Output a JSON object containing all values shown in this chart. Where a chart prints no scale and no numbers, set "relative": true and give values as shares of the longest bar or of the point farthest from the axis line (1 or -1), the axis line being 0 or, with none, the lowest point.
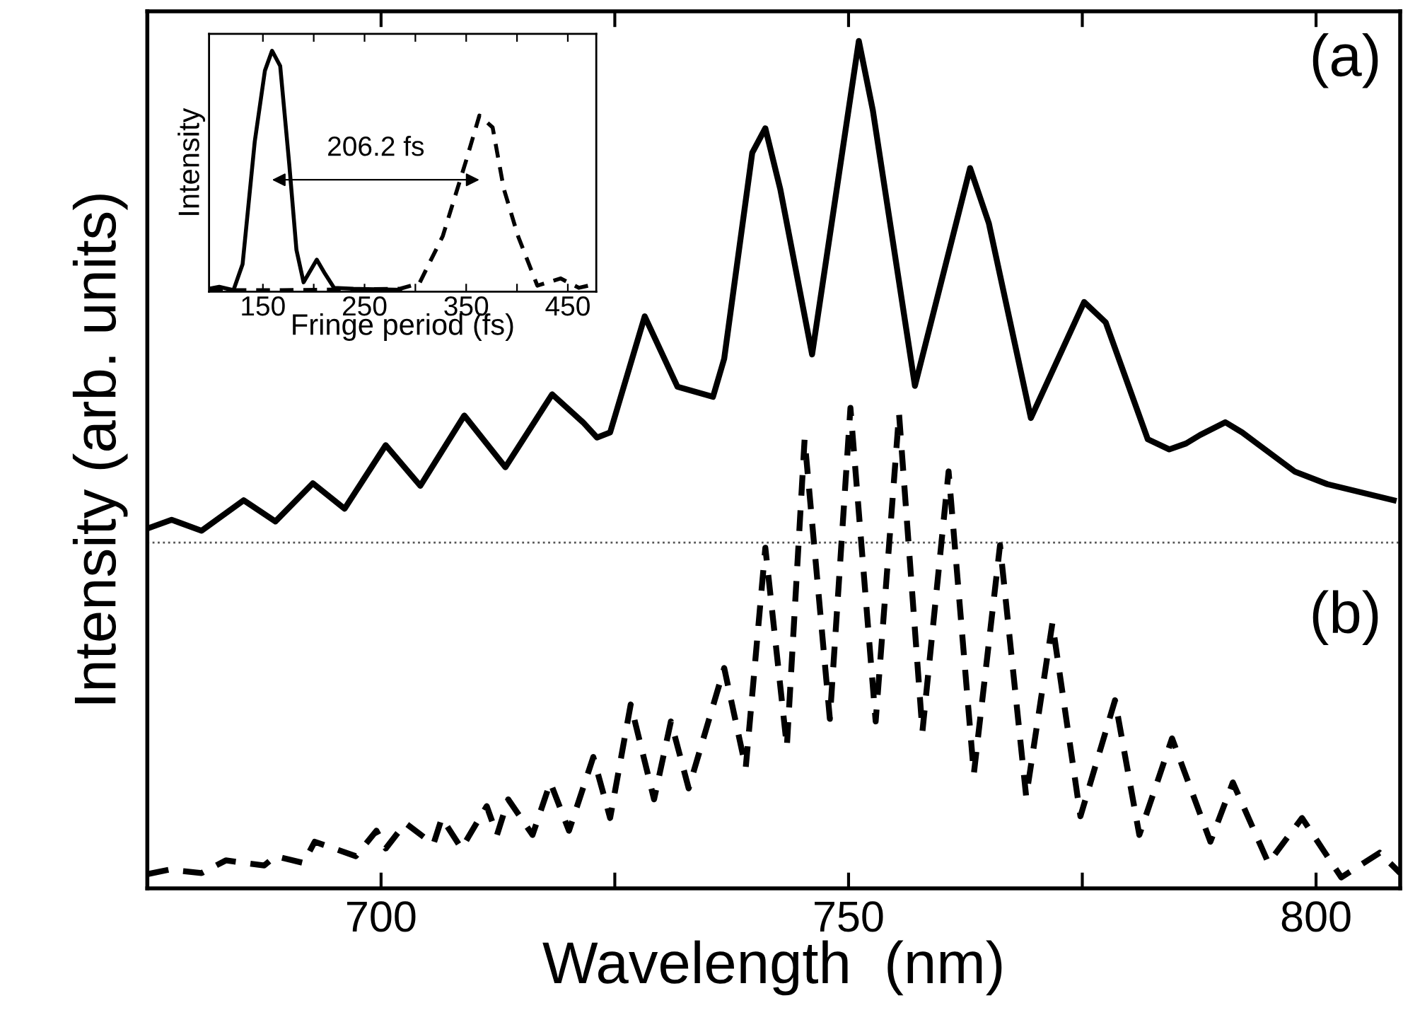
{
  "chart_data": [
    {
      "type": "line",
      "relative": true,
      "xlabel": "Wavelength  (nm)",
      "ylabel": "Intensity (arb. units)",
      "xlim": [
        675,
        809
      ],
      "xticks": [
        700,
        {
          "value": 725,
          "label": null
        },
        750,
        {
          "value": 775,
          "label": null
        },
        800
      ],
      "marker": "none",
      "tick_labels": "x",
      "series": [
        {
          "color": "#000000",
          "line_style": "solid",
          "x": [
            675.1,
            677.6,
            680.8,
            685.3,
            688.7,
            692.7,
            696.1,
            700.5,
            704.2,
            708.9,
            713.3,
            718.3,
            721.6,
            723.1,
            724.5,
            728.2,
            731.7,
            735.5,
            736.7,
            739.7,
            741.1,
            742.7,
            746.1,
            751.1,
            752.6,
            757.1,
            763.0,
            765.0,
            769.5,
            775.2,
            777.5,
            782.0,
            784.3,
            786.1,
            787.6,
            790.3,
            792.1,
            797.7,
            801.2,
            808.3
          ],
          "values": [
            0.425,
            0.435,
            0.422,
            0.458,
            0.433,
            0.478,
            0.448,
            0.523,
            0.475,
            0.558,
            0.497,
            0.583,
            0.55,
            0.532,
            0.538,
            0.675,
            0.592,
            0.58,
            0.625,
            0.868,
            0.897,
            0.825,
            0.63,
            1.0,
            0.918,
            0.593,
            0.85,
            0.785,
            0.555,
            0.692,
            0.668,
            0.53,
            0.518,
            0.525,
            0.535,
            0.55,
            0.538,
            0.492,
            0.477,
            0.458
          ]
        },
        {
          "color": "#000000",
          "line_style": "dashed",
          "x": [
            675.1,
            677.3,
            680.8,
            683.4,
            687.5,
            688.7,
            691.7,
            692.9,
            697.3,
            699.5,
            700.5,
            702.6,
            705.6,
            706.5,
            708.6,
            711.3,
            712.4,
            713.6,
            716.2,
            718.1,
            720.1,
            722.7,
            724.5,
            726.7,
            729.2,
            731.0,
            732.9,
            736.7,
            739.0,
            741.1,
            743.4,
            745.3,
            748.0,
            750.2,
            752.9,
            755.4,
            757.9,
            760.7,
            763.4,
            766.2,
            769.0,
            771.8,
            774.8,
            778.5,
            781.1,
            784.6,
            788.7,
            791.1,
            794.9,
            798.5,
            802.7,
            806.8,
            809.0
          ],
          "values": [
            0.017,
            0.022,
            0.018,
            0.033,
            0.027,
            0.038,
            0.03,
            0.055,
            0.038,
            0.068,
            0.047,
            0.077,
            0.052,
            0.083,
            0.047,
            0.097,
            0.063,
            0.105,
            0.063,
            0.125,
            0.068,
            0.155,
            0.083,
            0.217,
            0.105,
            0.197,
            0.118,
            0.26,
            0.142,
            0.402,
            0.167,
            0.53,
            0.2,
            0.567,
            0.197,
            0.56,
            0.185,
            0.492,
            0.135,
            0.405,
            0.108,
            0.313,
            0.085,
            0.222,
            0.063,
            0.177,
            0.055,
            0.125,
            0.03,
            0.083,
            0.013,
            0.042,
            0.018
          ]
        }
      ],
      "ref_lines": [
        {
          "axis": "y",
          "value": 0.408,
          "color": "#555555",
          "line_style": "dotted"
        }
      ],
      "annotations": [
        "(a)",
        "(b)"
      ]
    },
    {
      "type": "line",
      "relative": true,
      "xlabel": "Fringe period (fs)",
      "ylabel": "Intensity",
      "xlim": [
        97,
        478
      ],
      "xticks": [
        150,
        {
          "value": 200,
          "label": null
        },
        250,
        {
          "value": 300,
          "label": null
        },
        350,
        {
          "value": 400,
          "label": null
        },
        450
      ],
      "marker": "none",
      "tick_labels": "x",
      "series": [
        {
          "color": "#000000",
          "line_style": "solid",
          "x": [
            97,
            107,
            121,
            130,
            142,
            152,
            159,
            167,
            176,
            183,
            190,
            203,
            211,
            220,
            239,
            285
          ],
          "values": [
            0.012,
            0.02,
            0.006,
            0.114,
            0.624,
            0.918,
            1.0,
            0.937,
            0.525,
            0.173,
            0.039,
            0.133,
            0.075,
            0.016,
            0.012,
            0.008
          ]
        },
        {
          "color": "#000000",
          "line_style": "dashed",
          "x": [
            97,
            169,
            285,
            304,
            327,
            350,
            363,
            376,
            387,
            401,
            420,
            443,
            450,
            461,
            470,
            477
          ],
          "values": [
            0.006,
            0.006,
            0.012,
            0.035,
            0.231,
            0.545,
            0.731,
            0.682,
            0.427,
            0.231,
            0.025,
            0.055,
            0.039,
            0.016,
            0.025,
            0.006
          ]
        }
      ],
      "annotations": [
        "206.2 fs"
      ]
    }
  ]
}
